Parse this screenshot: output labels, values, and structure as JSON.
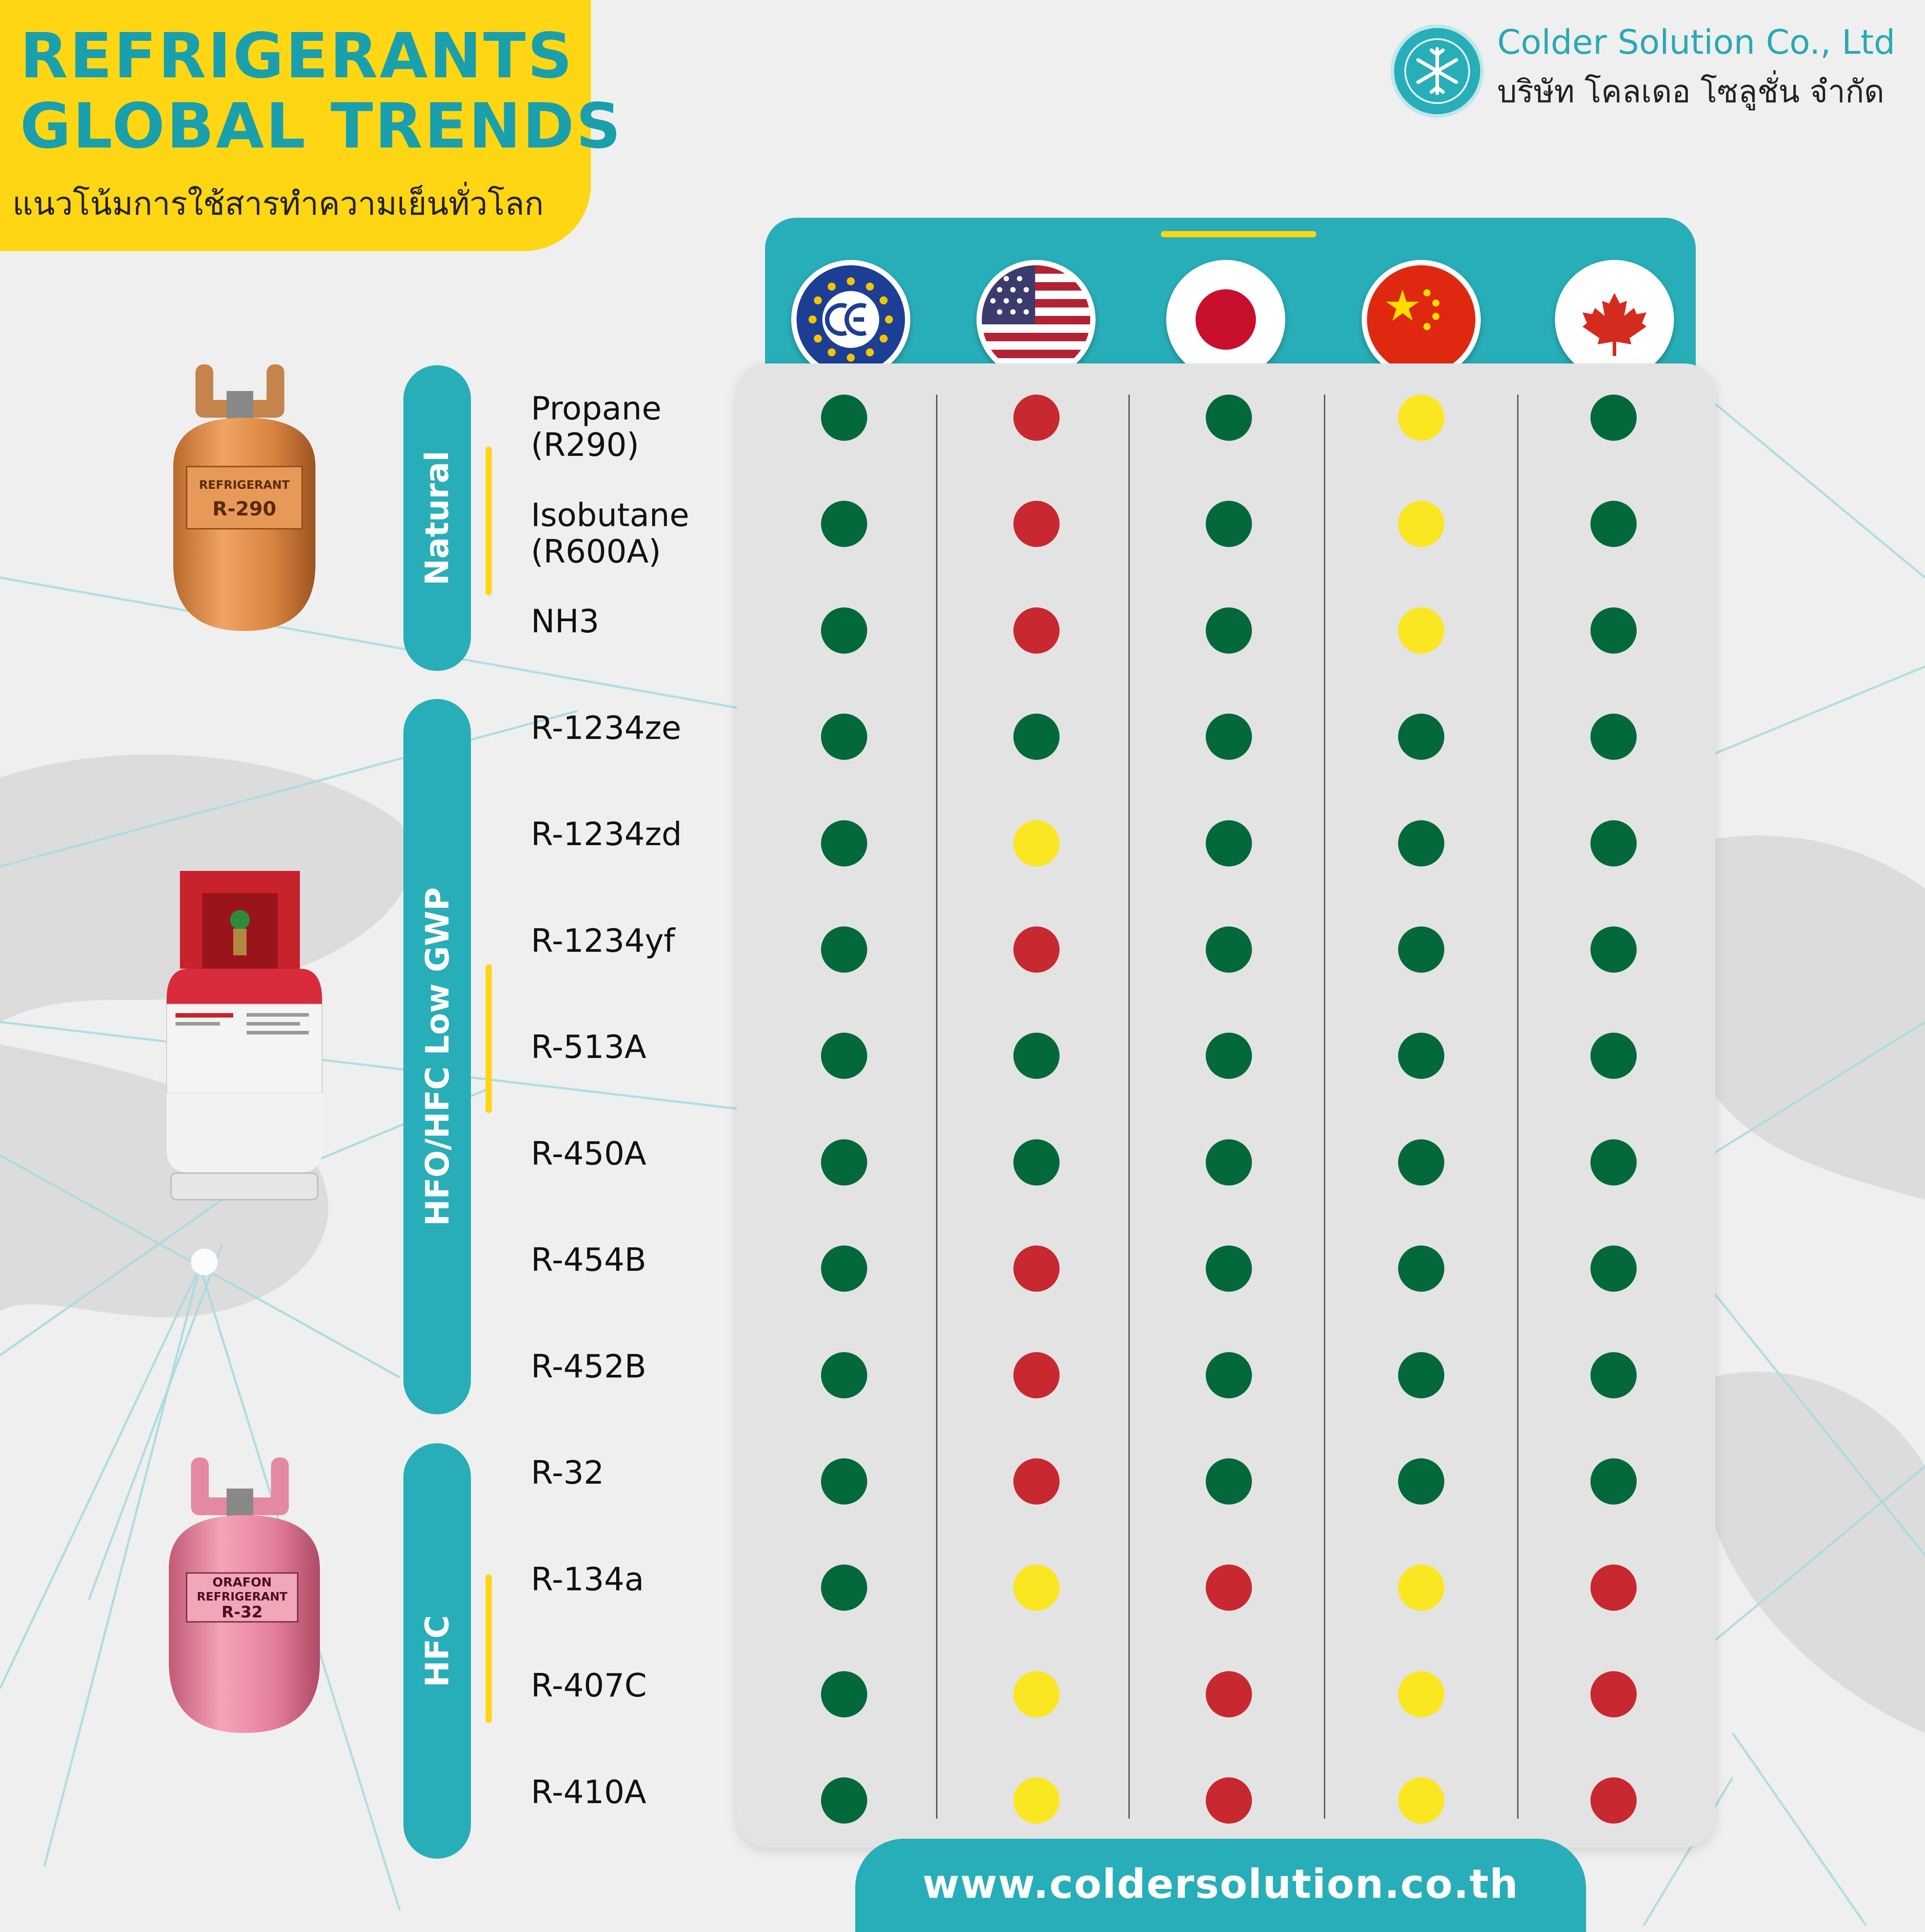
{
  "header": {
    "title_line1": "REFRIGERANTS",
    "title_line2": "GLOBAL  TRENDS",
    "subtitle_th": "แนวโน้มการใช้สารทำความเย็นทั่วโลก"
  },
  "company": {
    "name_en": "Colder Solution Co., Ltd",
    "name_th": "บริษัท โคลเดอ โซลูชั่น จำกัด",
    "logo_icon": "snowflake-icon"
  },
  "colors": {
    "teal": "#28aeb8",
    "yellow": "#fed614",
    "green": "#04693a",
    "red": "#c8282f",
    "status_yellow": "#fbe622"
  },
  "regions": [
    {
      "icon": "ce-flag-icon"
    },
    {
      "icon": "usa-flag-icon"
    },
    {
      "icon": "japan-flag-icon"
    },
    {
      "icon": "china-flag-icon"
    },
    {
      "icon": "canada-flag-icon"
    }
  ],
  "categories": [
    {
      "label": "Natural"
    },
    {
      "label": "HFO/HFC Low GWP"
    },
    {
      "label": "HFC"
    }
  ],
  "rows": [
    {
      "label": "Propane\n(R290)",
      "status": [
        "green",
        "red",
        "green",
        "yellow",
        "green"
      ]
    },
    {
      "label": "Isobutane\n(R600A)",
      "status": [
        "green",
        "red",
        "green",
        "yellow",
        "green"
      ]
    },
    {
      "label": "NH3",
      "status": [
        "green",
        "red",
        "green",
        "yellow",
        "green"
      ]
    },
    {
      "label": "R-1234ze",
      "status": [
        "green",
        "green",
        "green",
        "green",
        "green"
      ]
    },
    {
      "label": "R-1234zd",
      "status": [
        "green",
        "yellow",
        "green",
        "green",
        "green"
      ]
    },
    {
      "label": "R-1234yf",
      "status": [
        "green",
        "red",
        "green",
        "green",
        "green"
      ]
    },
    {
      "label": "R-513A",
      "status": [
        "green",
        "green",
        "green",
        "green",
        "green"
      ]
    },
    {
      "label": "R-450A",
      "status": [
        "green",
        "green",
        "green",
        "green",
        "green"
      ]
    },
    {
      "label": "R-454B",
      "status": [
        "green",
        "red",
        "green",
        "green",
        "green"
      ]
    },
    {
      "label": "R-452B",
      "status": [
        "green",
        "red",
        "green",
        "green",
        "green"
      ]
    },
    {
      "label": "R-32",
      "status": [
        "green",
        "red",
        "green",
        "green",
        "green"
      ]
    },
    {
      "label": "R-134a",
      "status": [
        "green",
        "yellow",
        "red",
        "yellow",
        "red"
      ]
    },
    {
      "label": "R-407C",
      "status": [
        "green",
        "yellow",
        "red",
        "yellow",
        "red"
      ]
    },
    {
      "label": "R-410A",
      "status": [
        "green",
        "yellow",
        "red",
        "yellow",
        "red"
      ]
    }
  ],
  "cylinders": [
    {
      "icon": "orange-refrigerant-cylinder-icon",
      "brand_text": "REFRIGERANT",
      "label": "R-290"
    },
    {
      "icon": "red-white-refrigerant-tank-icon"
    },
    {
      "icon": "pink-refrigerant-cylinder-icon",
      "brand_text": "ORAFON",
      "brand_sub": "REFRIGERANT",
      "label": "R-32"
    }
  ],
  "footer": {
    "url": "www.coldersolution.co.th"
  }
}
